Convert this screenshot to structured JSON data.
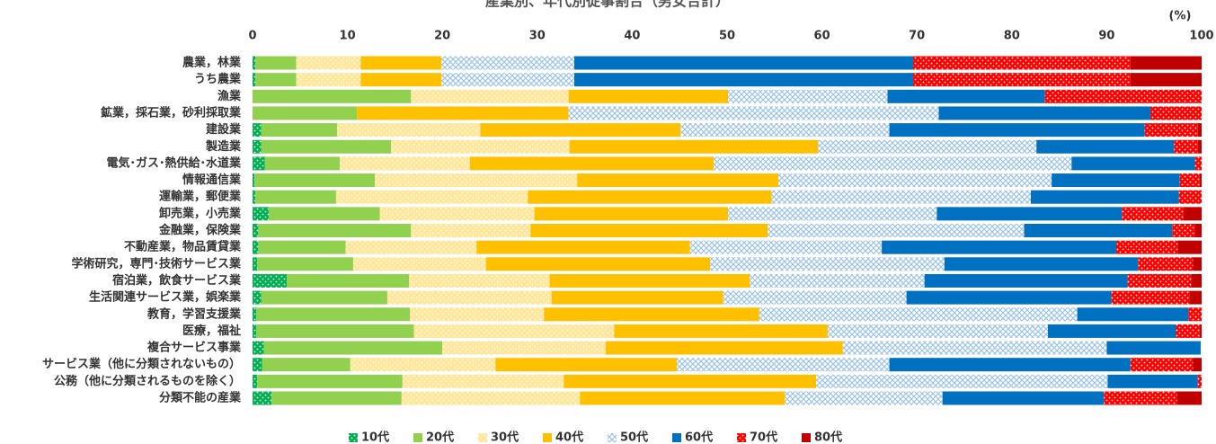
{
  "chart_data": {
    "type": "stacked_bar_horizontal",
    "title": "産業別、年代別従事割合（男女合計）",
    "unit_label": "(%)",
    "categories": [
      "農業，林業",
      "うち農業",
      "漁業",
      "鉱業，採石業，砂利採取業",
      "建設業",
      "製造業",
      "電気･ガス･熱供給･水道業",
      "情報通信業",
      "運輸業，郵便業",
      "卸売業，小売業",
      "金融業，保険業",
      "不動産業，物品賃貸業",
      "学術研究，専門･技術サービス業",
      "宿泊業，飲食サービス業",
      "生活関連サービス業，娯楽業",
      "教育，学習支援業",
      "医療，福祉",
      "複合サービス事業",
      "サービス業（他に分類されないもの）",
      "公務（他に分類されるものを除く）",
      "分類不能の産業"
    ],
    "series": [
      {
        "name": "10代",
        "color": "#00b050",
        "pattern": "dots",
        "values": [
          0.3,
          0.3,
          0,
          0,
          0.9,
          0.9,
          1.3,
          0.2,
          0.3,
          1.7,
          0.6,
          0.6,
          0.5,
          3.6,
          0.9,
          0.4,
          0.4,
          1.2,
          1.0,
          0.5,
          2.0
        ]
      },
      {
        "name": "20代",
        "color": "#92d050",
        "values": [
          4.3,
          4.3,
          16.7,
          11.0,
          8.0,
          13.7,
          7.9,
          12.7,
          8.5,
          11.7,
          16.1,
          9.2,
          10.1,
          12.9,
          13.3,
          16.2,
          16.6,
          18.8,
          9.3,
          15.3,
          13.7
        ]
      },
      {
        "name": "30代",
        "color": "#ffe699",
        "pattern": "dots",
        "values": [
          6.8,
          6.8,
          16.6,
          0,
          15.1,
          18.8,
          13.7,
          21.3,
          20.2,
          16.3,
          12.6,
          13.8,
          14.0,
          14.8,
          17.3,
          14.1,
          21.1,
          17.2,
          15.3,
          17.0,
          18.8
        ]
      },
      {
        "name": "40代",
        "color": "#ffc000",
        "values": [
          8.5,
          8.5,
          16.8,
          22.3,
          21.1,
          26.2,
          25.7,
          21.2,
          25.7,
          20.4,
          25.0,
          22.5,
          23.6,
          21.1,
          18.1,
          22.7,
          22.5,
          25.0,
          19.1,
          26.6,
          21.6
        ]
      },
      {
        "name": "50代",
        "color": "#9dc3e6",
        "pattern": "crosshatch",
        "values": [
          14.0,
          14.0,
          16.8,
          39.0,
          22.0,
          23.0,
          37.7,
          28.8,
          27.3,
          22.0,
          27.0,
          20.2,
          24.7,
          18.4,
          19.3,
          33.5,
          23.2,
          27.8,
          22.4,
          30.7,
          16.6
        ]
      },
      {
        "name": "60代",
        "color": "#0070c0",
        "values": [
          35.7,
          35.7,
          16.6,
          22.3,
          26.9,
          14.5,
          13.0,
          13.5,
          15.6,
          19.5,
          15.6,
          24.7,
          20.4,
          21.4,
          21.6,
          11.7,
          13.5,
          9.9,
          25.4,
          9.5,
          17.0
        ]
      },
      {
        "name": "70代",
        "color": "#ff0000",
        "pattern": "dots",
        "values": [
          22.9,
          22.9,
          16.5,
          5.4,
          5.6,
          2.5,
          0.7,
          2.1,
          2.4,
          6.5,
          2.4,
          6.5,
          5.8,
          6.7,
          8.2,
          1.4,
          2.5,
          0,
          6.6,
          0.4,
          7.7
        ]
      },
      {
        "name": "80代",
        "color": "#c00000",
        "values": [
          7.5,
          7.5,
          0,
          0,
          0.4,
          0.4,
          0,
          0.2,
          0,
          1.9,
          0.7,
          2.5,
          0.9,
          1.1,
          1.3,
          0,
          0.2,
          0,
          0.9,
          0,
          2.6
        ]
      }
    ],
    "xlim": [
      0,
      100
    ],
    "xticks": [
      0,
      10,
      20,
      30,
      40,
      50,
      60,
      70,
      80,
      90,
      100
    ],
    "grid": false,
    "legend": "bottom"
  }
}
